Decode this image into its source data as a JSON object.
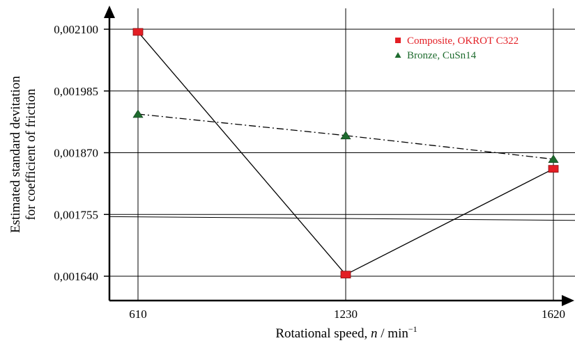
{
  "chart_data": {
    "type": "line",
    "categories": [
      "610",
      "1230",
      "1620"
    ],
    "series": [
      {
        "name": "Composite, OKROT C322",
        "values": [
          0.002095,
          0.001643,
          0.00184
        ],
        "color": "#e31e24",
        "marker": "square",
        "line_style": "solid"
      },
      {
        "name": "Bronze, CuSn14",
        "values": [
          0.001942,
          0.001902,
          0.001858
        ],
        "color": "#1e6b2e",
        "marker": "triangle",
        "line_style": "dash-dot"
      }
    ],
    "y_ticks": [
      "0,001640",
      "0,001755",
      "0,001870",
      "0,001985",
      "0,002100"
    ],
    "y_tick_values": [
      0.00164,
      0.001755,
      0.00187,
      0.001985,
      0.0021
    ],
    "ylim": [
      0.001625,
      0.00213
    ],
    "xlabel_main": "Rotational speed, ",
    "xlabel_var": "n",
    "xlabel_unit": " / min",
    "xlabel_exp": "−1",
    "ylabel_line1": "Estimated standard devitation",
    "ylabel_line2": "for coefficient of friction",
    "reference_line": {
      "values": [
        0.001751,
        0.001744
      ]
    },
    "grid": true,
    "legend_position": "top-right"
  }
}
